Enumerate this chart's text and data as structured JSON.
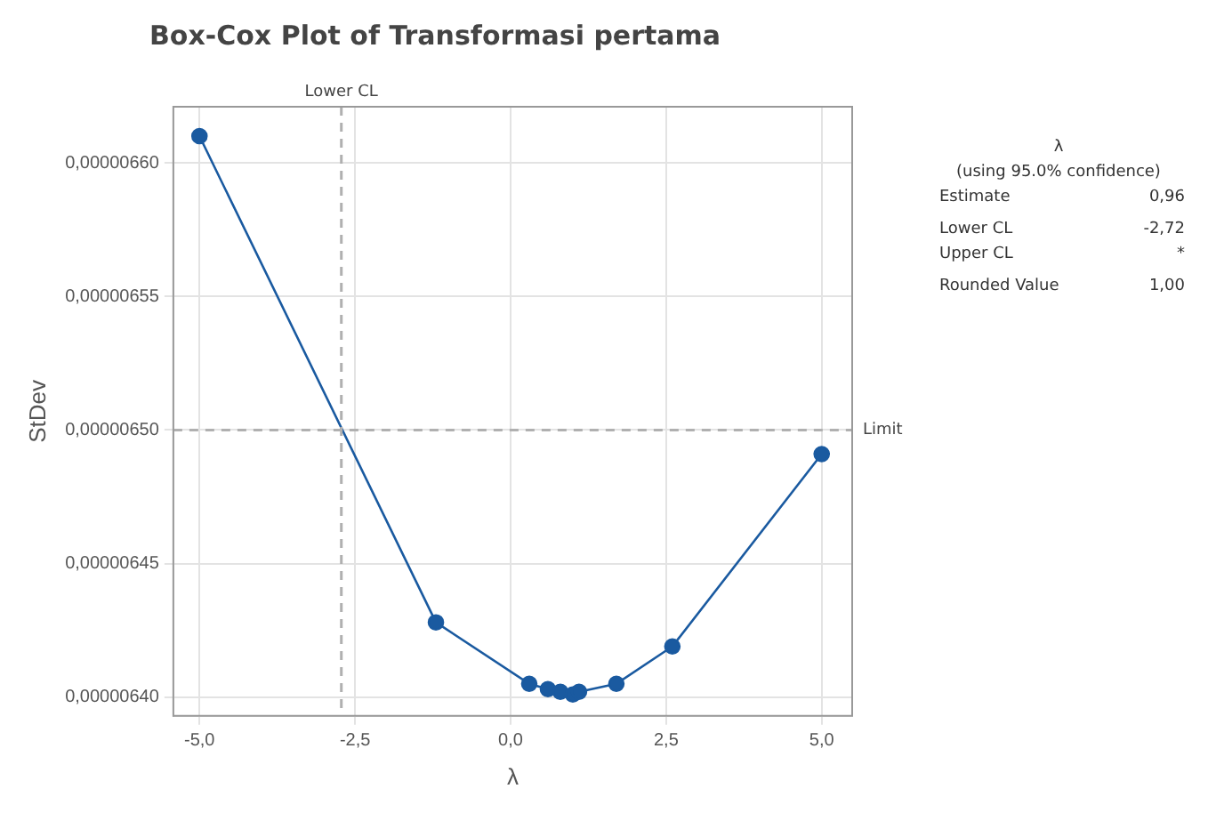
{
  "chart_data": {
    "type": "line",
    "title": "Box-Cox Plot of Transformasi pertama",
    "xlabel": "λ",
    "ylabel": "StDev",
    "x": [
      -5,
      -1.2,
      0.3,
      0.6,
      0.8,
      1.0,
      1.1,
      1.7,
      2.6,
      5
    ],
    "series": [
      {
        "color": "#1a5aa0",
        "values": [
          6.61e-06,
          6.428e-06,
          6.405e-06,
          6.403e-06,
          6.402e-06,
          6.401e-06,
          6.402e-06,
          6.405e-06,
          6.419e-06,
          6.491e-06
        ]
      }
    ],
    "xlim": [
      -5.42,
      5.49
    ],
    "xticks": [
      {
        "value": -5,
        "label": "-5,0"
      },
      {
        "value": -2.5,
        "label": "-2,5"
      },
      {
        "value": 0,
        "label": "0,0"
      },
      {
        "value": 2.5,
        "label": "2,5"
      },
      {
        "value": 5,
        "label": "5,0"
      }
    ],
    "ylim": [
      6.393e-06,
      6.621e-06
    ],
    "yticks": [
      {
        "value": 6.4e-06,
        "label": "0,00000640"
      },
      {
        "value": 6.45e-06,
        "label": "0,00000645"
      },
      {
        "value": 6.5e-06,
        "label": "0,00000650"
      },
      {
        "value": 6.55e-06,
        "label": "0,00000655"
      },
      {
        "value": 6.6e-06,
        "label": "0,00000660"
      }
    ],
    "ref_lines": [
      {
        "axis": "x",
        "value": -2.72,
        "label": "Lower CL",
        "color": "#b0b0b0",
        "line_style": "dashed"
      },
      {
        "axis": "y",
        "value": 6.5e-06,
        "label": "Limit",
        "color": "#b0b0b0",
        "line_style": "dashed"
      }
    ],
    "annotations": [
      "λ",
      "(using 95.0% confidence)",
      "Estimate",
      "0,96",
      "Lower CL",
      "-2,72",
      "Upper CL",
      "*",
      "Rounded Value",
      "1,00"
    ],
    "grid": true,
    "marker": "circle",
    "line_style": "solid",
    "legend": false
  }
}
